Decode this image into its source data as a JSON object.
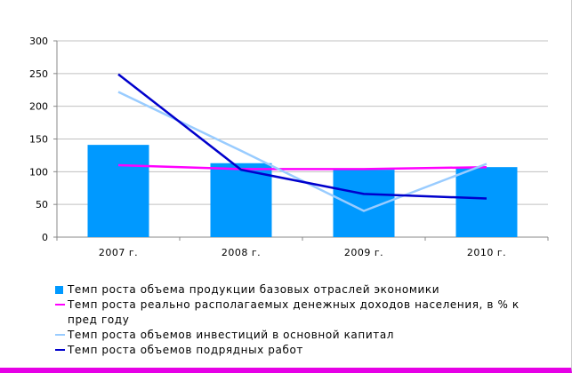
{
  "chart_data": {
    "type": "bar",
    "categories": [
      "2007 г.",
      "2008 г.",
      "2009 г.",
      "2010 г."
    ],
    "ylim": [
      0,
      300
    ],
    "yticks": [
      "0",
      "50",
      "100",
      "150",
      "200",
      "250",
      "300"
    ],
    "grid": true,
    "legend_placement": "bottom",
    "series": [
      {
        "name": "Темп роста объема продукции базовых отраслей экономики",
        "kind": "bar",
        "color": "#0099ff",
        "values": [
          141,
          113,
          103,
          107
        ]
      },
      {
        "name": "Темп роста реально располагаемых денежных доходов населения, в % к пред году",
        "kind": "line",
        "color": "#ff00ff",
        "values": [
          110,
          104,
          104,
          107
        ]
      },
      {
        "name": "Темп роста объемов инвестиций в основной капитал",
        "kind": "line",
        "color": "#99ccff",
        "values": [
          222,
          132,
          40,
          112
        ]
      },
      {
        "name": "Темп роста объемов подрядных работ",
        "kind": "line",
        "color": "#0000cc",
        "values": [
          249,
          103,
          66,
          59
        ]
      }
    ]
  }
}
